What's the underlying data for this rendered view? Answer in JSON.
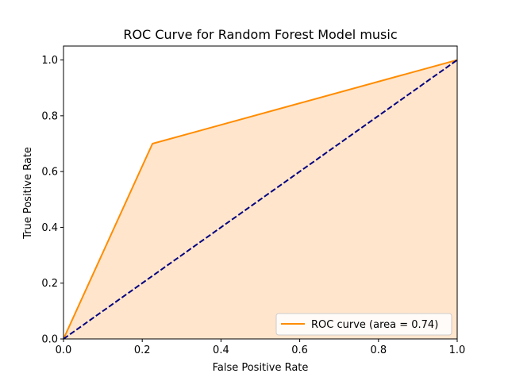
{
  "chart_data": {
    "type": "line",
    "title": "ROC Curve for Random Forest Model music",
    "xlabel": "False Positive Rate",
    "ylabel": "True Positive Rate",
    "xlim": [
      0.0,
      1.0
    ],
    "ylim": [
      0.0,
      1.05
    ],
    "x_ticks": [
      0.0,
      0.2,
      0.4,
      0.6,
      0.8,
      1.0
    ],
    "x_tick_labels": [
      "0.0",
      "0.2",
      "0.4",
      "0.6",
      "0.8",
      "1.0"
    ],
    "y_ticks": [
      0.0,
      0.2,
      0.4,
      0.6,
      0.8,
      1.0
    ],
    "y_tick_labels": [
      "0.0",
      "0.2",
      "0.4",
      "0.6",
      "0.8",
      "1.0"
    ],
    "grid": false,
    "legend_position": "lower-right",
    "series": [
      {
        "name": "ROC curve (area = 0.74)",
        "style": "solid",
        "filled": true,
        "color": "#ff8c00",
        "fill_color": "#ffe5cc",
        "x": [
          0.0,
          0.226,
          1.0
        ],
        "y": [
          0.0,
          0.7,
          1.0
        ]
      },
      {
        "name": "",
        "style": "dashed",
        "filled": false,
        "color": "#000080",
        "x": [
          0.0,
          1.0
        ],
        "y": [
          0.0,
          1.0
        ]
      }
    ]
  }
}
